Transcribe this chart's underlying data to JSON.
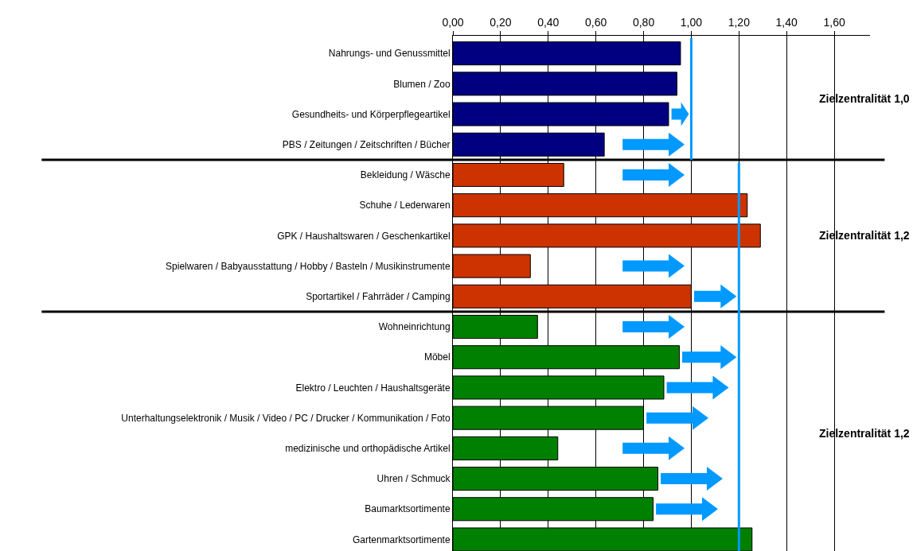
{
  "chart_data": {
    "type": "bar",
    "orientation": "horizontal",
    "categories": [
      "Nahrungs- und Genussmittel",
      "Blumen / Zoo",
      "Gesundheits- und Körperpflegeartikel",
      "PBS / Zeitungen / Zeitschriften / Bücher",
      "Bekleidung / Wäsche",
      "Schuhe / Lederwaren",
      "GPK / Haushaltswaren / Geschenkartikel",
      "Spielwaren / Babyausstattung / Hobby / Basteln / Musikinstrumente",
      "Sportartikel / Fahrräder / Camping",
      "Wohneinrichtung",
      "Möbel",
      "Elektro / Leuchten / Haushaltsgeräte",
      "Unterhaltungselektronik / Musik / Video / PC / Drucker / Kommunikation / Foto",
      "medizinische und orthopädische Artikel",
      "Uhren / Schmuck",
      "Baumarktsortimente",
      "Gartenmarktsortimente"
    ],
    "values": [
      0.955,
      0.94,
      0.905,
      0.635,
      0.465,
      1.235,
      1.29,
      0.325,
      1.0,
      0.355,
      0.95,
      0.885,
      0.8,
      0.44,
      0.86,
      0.84,
      1.255
    ],
    "colors": [
      "#000080",
      "#000080",
      "#000080",
      "#000080",
      "#cc3300",
      "#cc3300",
      "#cc3300",
      "#cc3300",
      "#cc3300",
      "#008000",
      "#008000",
      "#008000",
      "#008000",
      "#008000",
      "#008000",
      "#008000",
      "#008000"
    ],
    "xlim": [
      0,
      1.75
    ],
    "xticks": [
      {
        "value": 0,
        "label": "0,00"
      },
      {
        "value": 0.2,
        "label": "0,20"
      },
      {
        "value": 0.4,
        "label": "0,40"
      },
      {
        "value": 0.6,
        "label": "0,60"
      },
      {
        "value": 0.8,
        "label": "0,80"
      },
      {
        "value": 1.0,
        "label": "1,00"
      },
      {
        "value": 1.2,
        "label": "1,20"
      },
      {
        "value": 1.4,
        "label": "1,40"
      },
      {
        "value": 1.6,
        "label": "1,60"
      }
    ],
    "grid": "x",
    "ref_lines": [
      {
        "axis": "x",
        "value": 1.0,
        "color": "#0099ff"
      },
      {
        "axis": "x",
        "value": 1.2,
        "color": "#0099ff"
      }
    ],
    "annotations": [
      "Zielzentralität 1,0",
      "Zielzentralität 1,2",
      "Zielzentralität 1,2"
    ]
  }
}
